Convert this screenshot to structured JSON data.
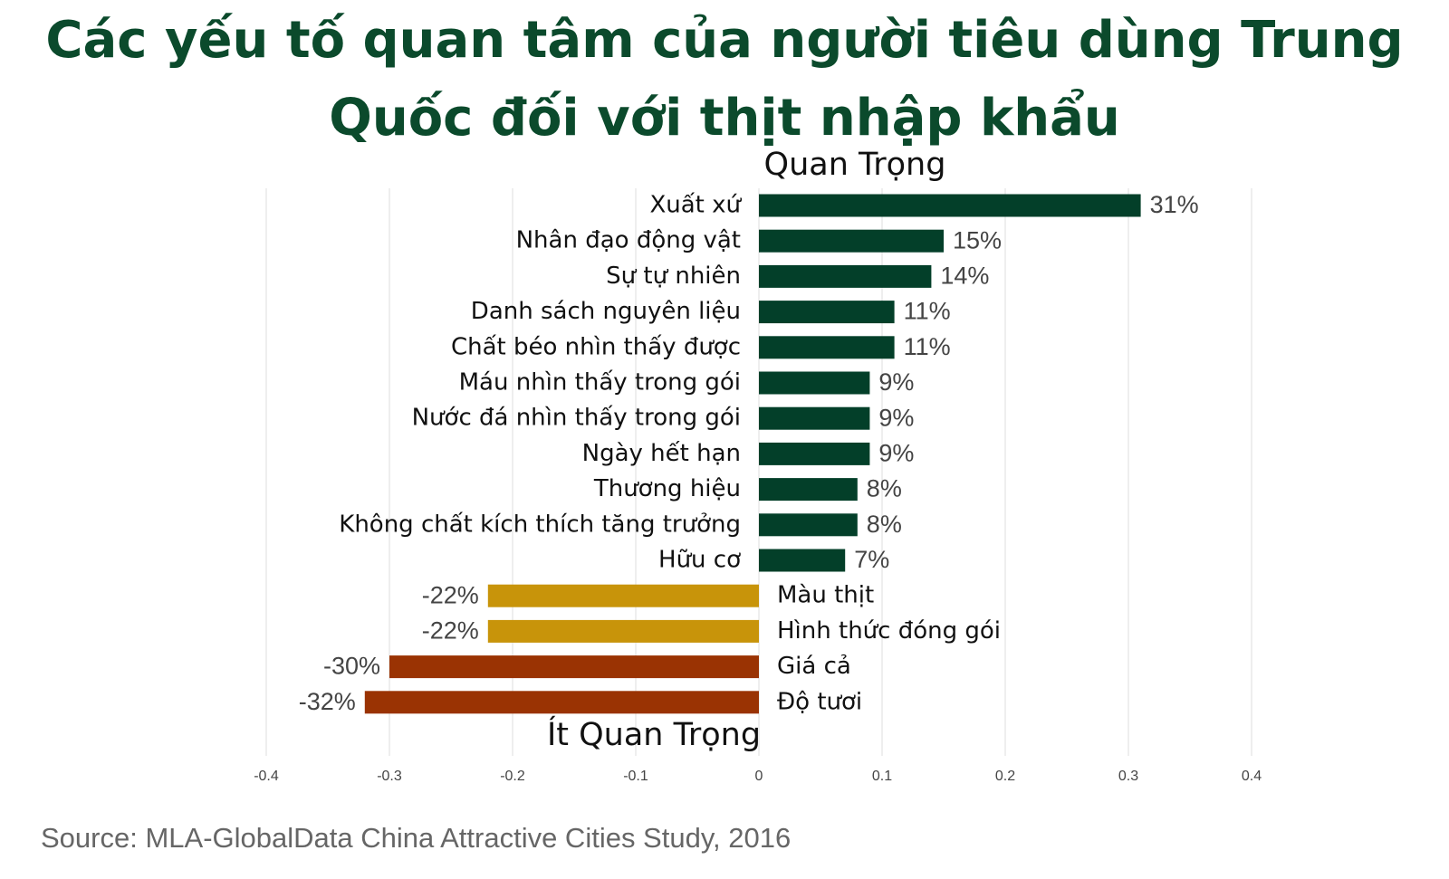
{
  "chart_data": {
    "type": "bar",
    "orientation": "horizontal",
    "title": "Các yếu tố quan tâm của người tiêu dùng Trung Quốc đối với thịt nhập khẩu",
    "annotations": [
      "Quan Trọng",
      "Ít Quan Trọng"
    ],
    "source": "Source: MLA-GlobalData China Attractive Cities Study, 2016",
    "categories": [
      "Xuất xứ",
      "Nhân đạo động vật",
      "Sự tự nhiên",
      "Danh sách nguyên liệu",
      "Chất béo nhìn thấy được",
      "Máu nhìn thấy trong gói",
      "Nước đá nhìn thấy trong gói",
      "Ngày hết hạn",
      "Thương hiệu",
      "Không chất kích thích tăng trưởng",
      "Hữu cơ",
      "Màu thịt",
      "Hình thức đóng gói",
      "Giá cả",
      "Độ tươi"
    ],
    "values": [
      0.31,
      0.15,
      0.14,
      0.11,
      0.11,
      0.09,
      0.09,
      0.09,
      0.08,
      0.08,
      0.07,
      -0.22,
      -0.22,
      -0.3,
      -0.32
    ],
    "value_labels": [
      "31%",
      "15%",
      "14%",
      "11%",
      "11%",
      "9%",
      "9%",
      "9%",
      "8%",
      "8%",
      "7%",
      "-22%",
      "-22%",
      "-30%",
      "-32%"
    ],
    "colors": [
      "#033f29",
      "#033f29",
      "#033f29",
      "#033f29",
      "#033f29",
      "#033f29",
      "#033f29",
      "#033f29",
      "#033f29",
      "#033f29",
      "#033f29",
      "#c8940a",
      "#c8940a",
      "#9a3303",
      "#9a3303"
    ],
    "xlim": [
      -0.4,
      0.4
    ],
    "xticks": [
      -0.4,
      -0.3,
      -0.2,
      -0.1,
      0,
      0.1,
      0.2,
      0.3,
      0.4
    ],
    "grid": true
  }
}
